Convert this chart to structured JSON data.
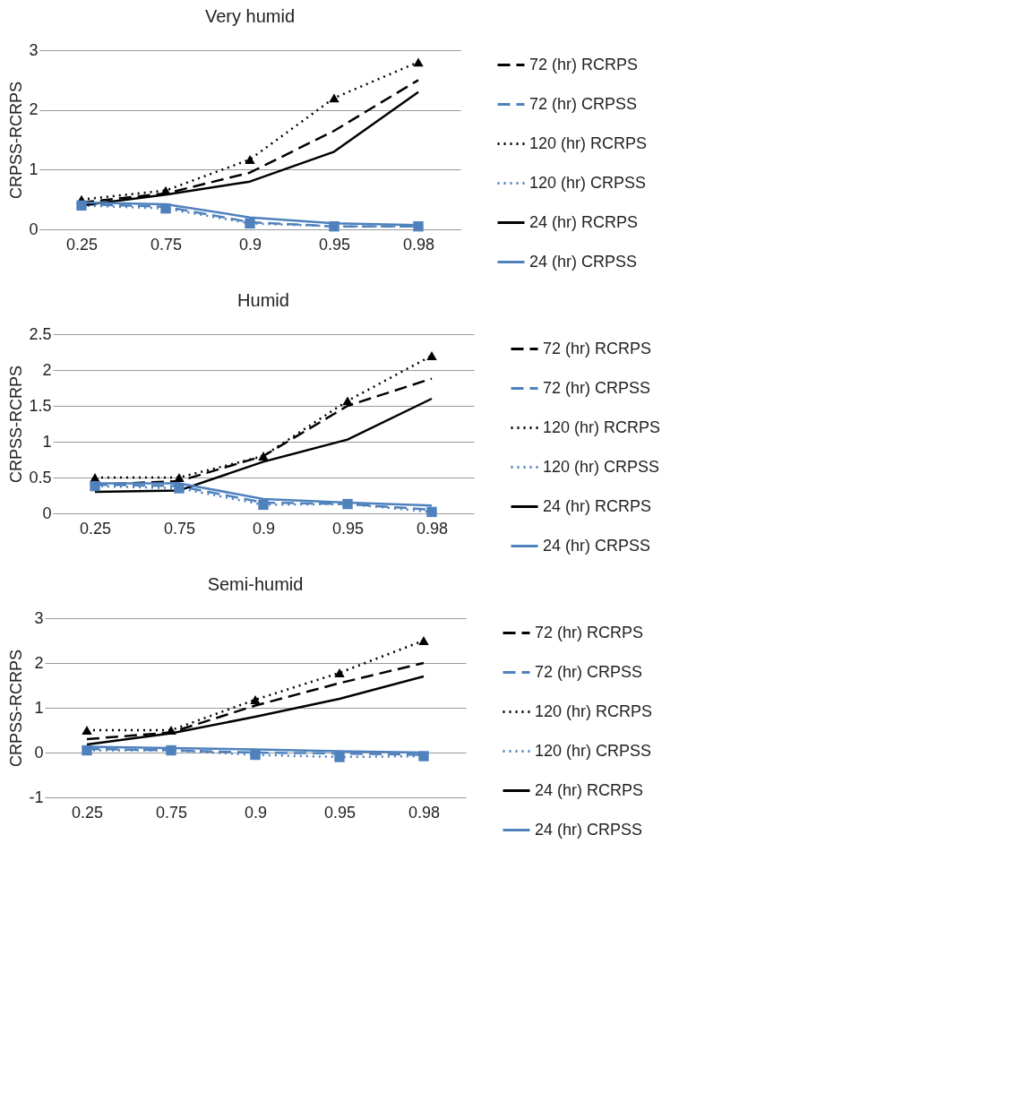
{
  "chart_data": [
    {
      "type": "line",
      "title": "Very humid",
      "ylabel": "CRPSS-RCRPS",
      "categories": [
        "0.25",
        "0.75",
        "0.9",
        "0.95",
        "0.98"
      ],
      "ylim": [
        0,
        3
      ],
      "yticks": [
        0,
        1,
        2,
        3
      ],
      "grid": "y",
      "legend": "right",
      "series": [
        {
          "name": "72 (hr) RCRPS",
          "color": "#000000",
          "line_style": "dashed",
          "marker": "none",
          "values": [
            0.45,
            0.6,
            0.95,
            1.65,
            2.5
          ]
        },
        {
          "name": "72 (hr) CRPSS",
          "color": "#4f81bd",
          "line_style": "dashed",
          "marker": "none",
          "values": [
            0.42,
            0.38,
            0.12,
            0.05,
            0.05
          ]
        },
        {
          "name": "120 (hr) RCRPS",
          "color": "#000000",
          "line_style": "dotted",
          "marker": "triangle",
          "values": [
            0.5,
            0.65,
            1.17,
            2.2,
            2.8
          ]
        },
        {
          "name": "120 (hr) CRPSS",
          "color": "#4f81bd",
          "line_style": "dotted",
          "marker": "square",
          "values": [
            0.4,
            0.35,
            0.1,
            0.05,
            0.05
          ]
        },
        {
          "name": "24 (hr) RCRPS",
          "color": "#000000",
          "line_style": "solid",
          "marker": "none",
          "values": [
            0.4,
            0.58,
            0.8,
            1.3,
            2.3
          ]
        },
        {
          "name": "24 (hr) CRPSS",
          "color": "#4f81bd",
          "line_style": "solid",
          "marker": "none",
          "values": [
            0.45,
            0.42,
            0.2,
            0.1,
            0.07
          ]
        }
      ]
    },
    {
      "type": "line",
      "title": "Humid",
      "ylabel": "CRPSS-RCRPS",
      "categories": [
        "0.25",
        "0.75",
        "0.9",
        "0.95",
        "0.98"
      ],
      "ylim": [
        0,
        2.5
      ],
      "yticks": [
        0,
        0.5,
        1,
        1.5,
        2,
        2.5
      ],
      "grid": "y",
      "legend": "right",
      "series": [
        {
          "name": "72 (hr) RCRPS",
          "color": "#000000",
          "line_style": "dashed",
          "marker": "none",
          "values": [
            0.4,
            0.45,
            0.8,
            1.5,
            1.88
          ]
        },
        {
          "name": "72 (hr) CRPSS",
          "color": "#4f81bd",
          "line_style": "dashed",
          "marker": "none",
          "values": [
            0.4,
            0.38,
            0.15,
            0.13,
            0.05
          ]
        },
        {
          "name": "120 (hr) RCRPS",
          "color": "#000000",
          "line_style": "dotted",
          "marker": "triangle",
          "values": [
            0.5,
            0.5,
            0.8,
            1.57,
            2.2
          ]
        },
        {
          "name": "120 (hr) CRPSS",
          "color": "#4f81bd",
          "line_style": "dotted",
          "marker": "square",
          "values": [
            0.38,
            0.35,
            0.12,
            0.13,
            0.02
          ]
        },
        {
          "name": "24 (hr) RCRPS",
          "color": "#000000",
          "line_style": "solid",
          "marker": "none",
          "values": [
            0.3,
            0.32,
            0.72,
            1.03,
            1.6
          ]
        },
        {
          "name": "24 (hr) CRPSS",
          "color": "#4f81bd",
          "line_style": "solid",
          "marker": "none",
          "values": [
            0.42,
            0.42,
            0.2,
            0.15,
            0.11
          ]
        }
      ]
    },
    {
      "type": "line",
      "title": "Semi-humid",
      "ylabel": "CRPSS-RCRPS",
      "categories": [
        "0.25",
        "0.75",
        "0.9",
        "0.95",
        "0.98"
      ],
      "ylim": [
        -1,
        3
      ],
      "yticks": [
        -1,
        0,
        1,
        2,
        3
      ],
      "grid": "y",
      "legend": "right",
      "series": [
        {
          "name": "72 (hr) RCRPS",
          "color": "#000000",
          "line_style": "dashed",
          "marker": "none",
          "values": [
            0.3,
            0.45,
            1.05,
            1.55,
            2.0
          ]
        },
        {
          "name": "72 (hr) CRPSS",
          "color": "#4f81bd",
          "line_style": "dashed",
          "marker": "none",
          "values": [
            0.08,
            0.05,
            0.0,
            -0.02,
            -0.05
          ]
        },
        {
          "name": "120 (hr) RCRPS",
          "color": "#000000",
          "line_style": "dotted",
          "marker": "triangle",
          "values": [
            0.5,
            0.5,
            1.18,
            1.78,
            2.5
          ]
        },
        {
          "name": "120 (hr) CRPSS",
          "color": "#4f81bd",
          "line_style": "dotted",
          "marker": "square",
          "values": [
            0.05,
            0.05,
            -0.05,
            -0.1,
            -0.08
          ]
        },
        {
          "name": "24 (hr) RCRPS",
          "color": "#000000",
          "line_style": "solid",
          "marker": "none",
          "values": [
            0.18,
            0.43,
            0.8,
            1.2,
            1.7
          ]
        },
        {
          "name": "24 (hr) CRPSS",
          "color": "#4f81bd",
          "line_style": "solid",
          "marker": "none",
          "values": [
            0.13,
            0.1,
            0.07,
            0.03,
            0.0
          ]
        }
      ]
    }
  ]
}
